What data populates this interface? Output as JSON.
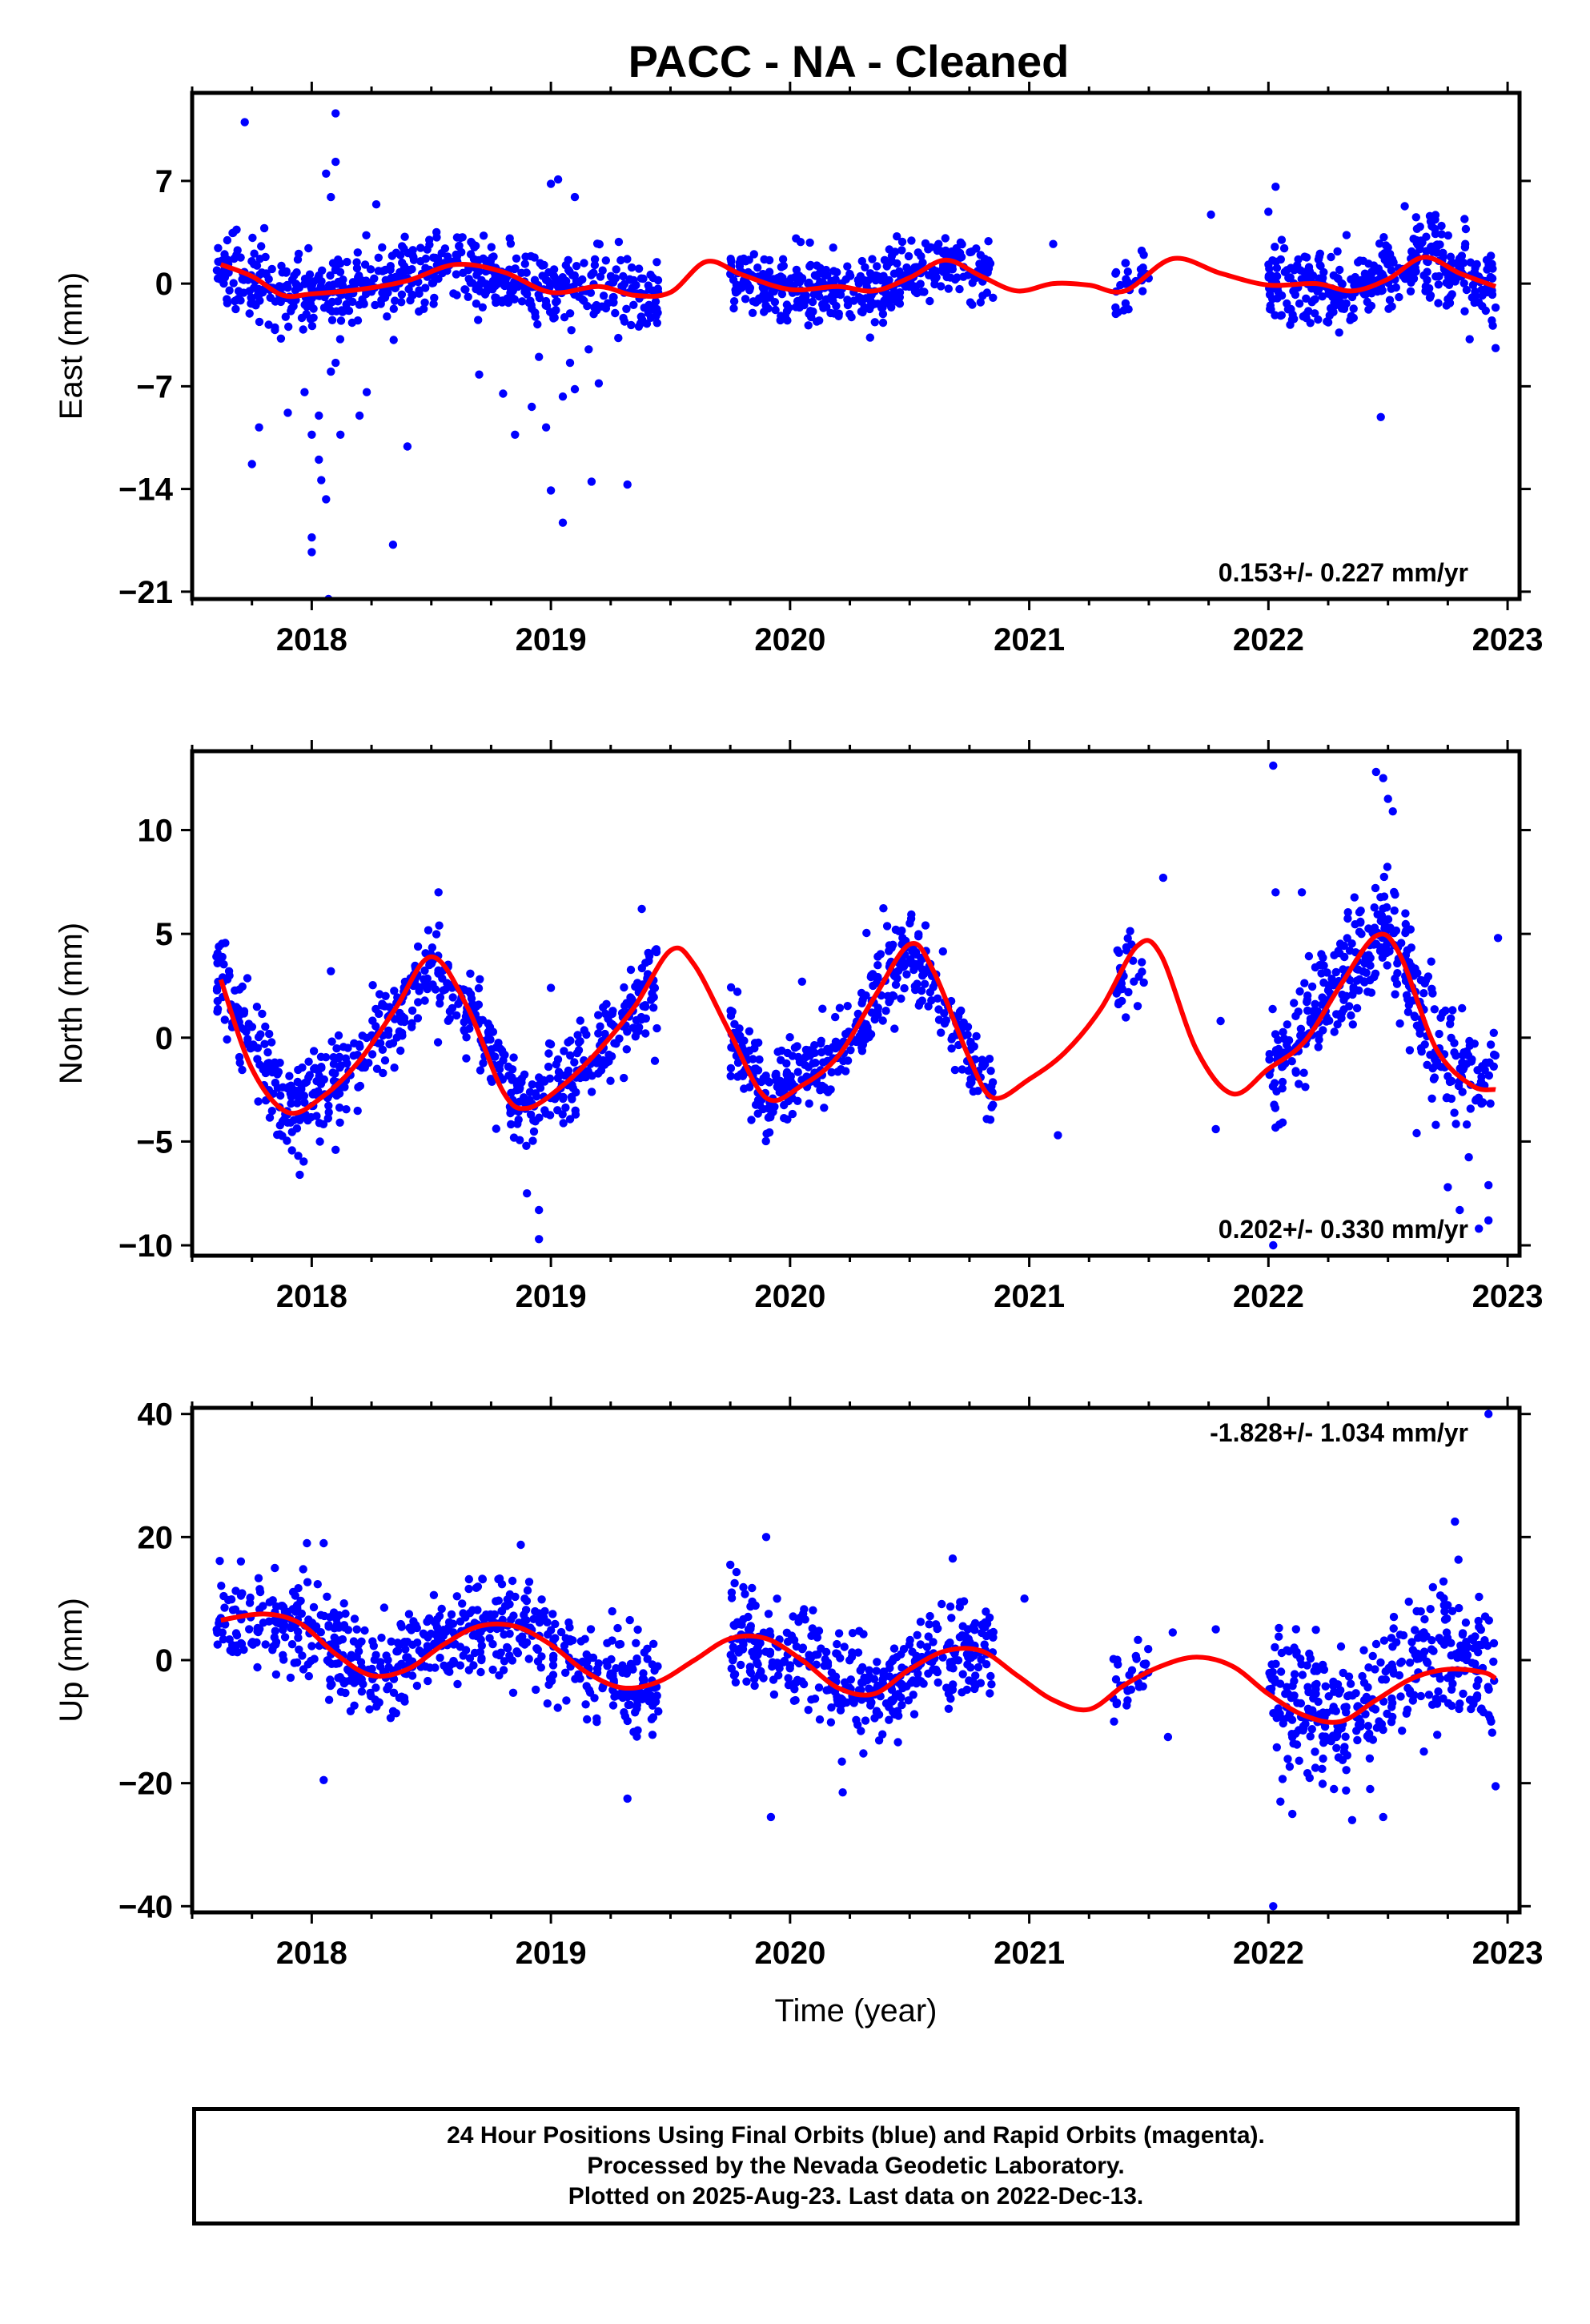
{
  "title": "PACC  - NA - Cleaned",
  "colors": {
    "final_orbits": "#0000ff",
    "fit": "#ff0000",
    "axes": "#000000"
  },
  "chart_data": [
    {
      "type": "scatter",
      "ylabel": "East (mm)",
      "xlabel": "",
      "xlim": [
        2017.5,
        2023.05
      ],
      "ylim": [
        -21.5,
        13.0
      ],
      "x_ticks": [
        2018,
        2019,
        2020,
        2021,
        2022,
        2023
      ],
      "y_ticks": [
        7,
        0,
        -7,
        -14,
        -21
      ],
      "rate_label": "0.153+/- 0.227 mm/yr",
      "rate_position": "bottom-right",
      "series": [
        {
          "kind": "fit",
          "color": "#ff0000",
          "x": [
            2017.62,
            2017.75,
            2017.88,
            2018.0,
            2018.2,
            2018.4,
            2018.6,
            2018.8,
            2019.0,
            2019.2,
            2019.35,
            2019.5,
            2019.65,
            2019.8,
            2020.0,
            2020.2,
            2020.35,
            2020.5,
            2020.65,
            2020.8,
            2020.95,
            2021.1,
            2021.25,
            2021.4,
            2021.6,
            2021.8,
            2022.0,
            2022.2,
            2022.35,
            2022.5,
            2022.65,
            2022.8,
            2022.95
          ],
          "y": [
            1.3,
            0.5,
            -0.8,
            -0.7,
            -0.4,
            0.2,
            1.3,
            0.8,
            -0.6,
            -0.2,
            -0.8,
            -0.6,
            1.5,
            0.6,
            -0.4,
            -0.2,
            -0.5,
            0.4,
            1.6,
            0.5,
            -0.5,
            0.0,
            -0.1,
            -0.5,
            1.7,
            0.7,
            -0.1,
            0.0,
            -0.5,
            0.3,
            1.8,
            0.7,
            -0.2
          ]
        }
      ],
      "scatter_segments": [
        {
          "start": 2017.6,
          "end": 2019.45,
          "center": [
            [
              2017.62,
              1.3
            ],
            [
              2017.88,
              -0.8
            ],
            [
              2018.2,
              -0.4
            ],
            [
              2018.6,
              1.3
            ],
            [
              2019.0,
              -0.6
            ],
            [
              2019.2,
              -0.2
            ],
            [
              2019.45,
              -0.8
            ]
          ],
          "spread": 1.2,
          "count": 620
        },
        {
          "start": 2019.75,
          "end": 2020.85,
          "center": [
            [
              2019.75,
              0.8
            ],
            [
              2020.0,
              -0.4
            ],
            [
              2020.35,
              -0.5
            ],
            [
              2020.65,
              1.6
            ],
            [
              2020.85,
              0.5
            ]
          ],
          "spread": 1.1,
          "count": 400
        },
        {
          "start": 2021.35,
          "end": 2021.5,
          "center": [
            [
              2021.35,
              -0.4
            ],
            [
              2021.5,
              0.6
            ]
          ],
          "spread": 1.0,
          "count": 30
        },
        {
          "start": 2022.0,
          "end": 2022.95,
          "center": [
            [
              2022.0,
              -0.1
            ],
            [
              2022.35,
              -0.5
            ],
            [
              2022.65,
              1.8
            ],
            [
              2022.95,
              -0.2
            ]
          ],
          "spread": 1.4,
          "count": 360
        }
      ],
      "outliers": [
        [
          2017.72,
          11.0
        ],
        [
          2018.1,
          11.6
        ],
        [
          2018.1,
          8.3
        ],
        [
          2018.06,
          7.5
        ],
        [
          2018.08,
          5.9
        ],
        [
          2018.27,
          5.4
        ],
        [
          2019.0,
          6.8
        ],
        [
          2019.03,
          7.1
        ],
        [
          2019.1,
          5.9
        ],
        [
          2017.78,
          -9.8
        ],
        [
          2017.75,
          -12.3
        ],
        [
          2017.9,
          -8.8
        ],
        [
          2017.97,
          -7.4
        ],
        [
          2018.0,
          -10.3
        ],
        [
          2018.0,
          -17.3
        ],
        [
          2018.0,
          -18.3
        ],
        [
          2018.03,
          -12.0
        ],
        [
          2018.04,
          -13.4
        ],
        [
          2018.06,
          -14.7
        ],
        [
          2018.03,
          -9.0
        ],
        [
          2018.08,
          -6.0
        ],
        [
          2018.1,
          -5.4
        ],
        [
          2018.12,
          -10.3
        ],
        [
          2018.07,
          -21.5
        ],
        [
          2018.2,
          -9.0
        ],
        [
          2018.23,
          -7.4
        ],
        [
          2018.34,
          -17.8
        ],
        [
          2018.4,
          -11.1
        ],
        [
          2018.7,
          -6.2
        ],
        [
          2018.8,
          -7.5
        ],
        [
          2018.85,
          -10.3
        ],
        [
          2018.92,
          -8.4
        ],
        [
          2018.98,
          -9.8
        ],
        [
          2018.95,
          -5.0
        ],
        [
          2019.0,
          -14.1
        ],
        [
          2019.05,
          -16.3
        ],
        [
          2019.05,
          -7.7
        ],
        [
          2019.1,
          -7.2
        ],
        [
          2019.17,
          -13.5
        ],
        [
          2019.2,
          -6.8
        ],
        [
          2019.32,
          -13.7
        ],
        [
          2019.08,
          -5.4
        ],
        [
          2022.47,
          -9.1
        ],
        [
          2022.82,
          4.4
        ],
        [
          2022.0,
          4.9
        ],
        [
          2022.03,
          6.6
        ],
        [
          2021.76,
          4.7
        ],
        [
          2021.1,
          2.7
        ],
        [
          2022.95,
          -4.4
        ]
      ]
    },
    {
      "type": "scatter",
      "ylabel": "North (mm)",
      "xlabel": "",
      "xlim": [
        2017.5,
        2023.05
      ],
      "ylim": [
        -10.5,
        13.8
      ],
      "x_ticks": [
        2018,
        2019,
        2020,
        2021,
        2022,
        2023
      ],
      "y_ticks": [
        10,
        5,
        0,
        -5,
        -10
      ],
      "rate_label": "0.202+/- 0.330 mm/yr",
      "rate_position": "bottom-right",
      "series": [
        {
          "kind": "fit",
          "color": "#ff0000",
          "x": [
            2017.62,
            2017.75,
            2017.9,
            2018.05,
            2018.2,
            2018.35,
            2018.5,
            2018.65,
            2018.8,
            2018.9,
            2019.05,
            2019.2,
            2019.35,
            2019.5,
            2019.6,
            2019.75,
            2019.9,
            2020.05,
            2020.2,
            2020.35,
            2020.5,
            2020.6,
            2020.75,
            2020.85,
            2021.0,
            2021.15,
            2021.3,
            2021.45,
            2021.55,
            2021.7,
            2021.85,
            2022.0,
            2022.15,
            2022.3,
            2022.45,
            2022.55,
            2022.7,
            2022.85,
            2022.95
          ],
          "y": [
            2.8,
            -1.5,
            -3.6,
            -2.8,
            -1.1,
            1.4,
            3.9,
            1.5,
            -2.6,
            -3.4,
            -2.3,
            -0.6,
            1.5,
            4.2,
            3.5,
            0.2,
            -2.9,
            -2.3,
            -0.9,
            1.9,
            4.5,
            3.2,
            -1.0,
            -2.9,
            -2.0,
            -0.7,
            1.4,
            4.4,
            4.0,
            -0.6,
            -2.7,
            -1.5,
            -0.2,
            2.5,
            4.9,
            4.0,
            -0.5,
            -2.3,
            -2.5
          ]
        }
      ],
      "scatter_segments": [
        {
          "start": 2017.6,
          "end": 2019.45,
          "center": [
            [
              2017.62,
              2.8
            ],
            [
              2017.9,
              -3.6
            ],
            [
              2018.2,
              -1.1
            ],
            [
              2018.5,
              3.9
            ],
            [
              2018.9,
              -3.4
            ],
            [
              2019.2,
              -0.6
            ],
            [
              2019.45,
              3.0
            ]
          ],
          "spread": 1.1,
          "count": 620
        },
        {
          "start": 2019.75,
          "end": 2020.85,
          "center": [
            [
              2019.75,
              0.2
            ],
            [
              2019.9,
              -2.9
            ],
            [
              2020.2,
              -0.9
            ],
            [
              2020.5,
              4.5
            ],
            [
              2020.75,
              -1.0
            ],
            [
              2020.85,
              -2.9
            ]
          ],
          "spread": 1.0,
          "count": 400
        },
        {
          "start": 2021.35,
          "end": 2021.5,
          "center": [
            [
              2021.35,
              2.5
            ],
            [
              2021.5,
              4.3
            ]
          ],
          "spread": 0.9,
          "count": 30
        },
        {
          "start": 2022.0,
          "end": 2022.95,
          "center": [
            [
              2022.0,
              -1.5
            ],
            [
              2022.3,
              2.5
            ],
            [
              2022.5,
              5.5
            ],
            [
              2022.7,
              -0.5
            ],
            [
              2022.95,
              -2.5
            ]
          ],
          "spread": 1.4,
          "count": 360
        }
      ],
      "outliers": [
        [
          2022.02,
          13.1
        ],
        [
          2022.45,
          12.8
        ],
        [
          2022.48,
          12.5
        ],
        [
          2022.5,
          11.5
        ],
        [
          2022.52,
          10.9
        ],
        [
          2022.03,
          7.0
        ],
        [
          2022.14,
          7.0
        ],
        [
          2021.56,
          7.7
        ],
        [
          2018.53,
          7.0
        ],
        [
          2019.38,
          6.2
        ],
        [
          2022.96,
          4.8
        ],
        [
          2018.95,
          -9.7
        ],
        [
          2018.9,
          -7.5
        ],
        [
          2018.95,
          -8.3
        ],
        [
          2017.95,
          -6.6
        ],
        [
          2018.1,
          -5.4
        ],
        [
          2022.62,
          -4.6
        ],
        [
          2022.7,
          -4.2
        ],
        [
          2022.75,
          -7.2
        ],
        [
          2022.8,
          -8.3
        ],
        [
          2022.88,
          -9.2
        ],
        [
          2022.92,
          -7.1
        ],
        [
          2022.92,
          -8.8
        ],
        [
          2022.02,
          -10.0
        ],
        [
          2021.12,
          -4.7
        ],
        [
          2021.78,
          -4.4
        ],
        [
          2021.8,
          0.8
        ],
        [
          2020.05,
          2.7
        ],
        [
          2018.08,
          3.2
        ],
        [
          2019.0,
          2.4
        ]
      ]
    },
    {
      "type": "scatter",
      "ylabel": "Up (mm)",
      "xlabel": "Time (year)",
      "xlim": [
        2017.5,
        2023.05
      ],
      "ylim": [
        -41.0,
        41.0
      ],
      "x_ticks": [
        2018,
        2019,
        2020,
        2021,
        2022,
        2023
      ],
      "y_ticks": [
        40,
        20,
        0,
        -20,
        -40
      ],
      "rate_label": "-1.828+/- 1.034 mm/yr",
      "rate_position": "top-right",
      "series": [
        {
          "kind": "fit",
          "color": "#ff0000",
          "x": [
            2017.62,
            2017.8,
            2017.95,
            2018.1,
            2018.25,
            2018.4,
            2018.55,
            2018.7,
            2018.85,
            2019.0,
            2019.15,
            2019.3,
            2019.45,
            2019.6,
            2019.75,
            2019.9,
            2020.05,
            2020.2,
            2020.35,
            2020.5,
            2020.65,
            2020.8,
            2020.95,
            2021.1,
            2021.25,
            2021.4,
            2021.55,
            2021.7,
            2021.85,
            2022.0,
            2022.15,
            2022.3,
            2022.45,
            2022.6,
            2022.75,
            2022.9,
            2022.95
          ],
          "y": [
            6.5,
            7.5,
            6.0,
            1.0,
            -2.5,
            -1.5,
            2.5,
            5.5,
            5.5,
            2.5,
            -2.0,
            -4.5,
            -3.5,
            0.0,
            3.5,
            3.5,
            0.0,
            -4.5,
            -5.5,
            -1.5,
            1.5,
            1.5,
            -2.5,
            -6.5,
            -8.0,
            -4.0,
            -1.0,
            0.5,
            -1.0,
            -5.5,
            -9.0,
            -10.0,
            -6.5,
            -3.0,
            -1.5,
            -2.0,
            -3.0
          ]
        }
      ],
      "scatter_segments": [
        {
          "start": 2017.6,
          "end": 2019.45,
          "center": [
            [
              2017.62,
              6.5
            ],
            [
              2017.95,
              6.0
            ],
            [
              2018.25,
              -2.5
            ],
            [
              2018.7,
              5.5
            ],
            [
              2018.85,
              5.5
            ],
            [
              2019.15,
              -2.0
            ],
            [
              2019.45,
              -3.5
            ]
          ],
          "spread": 4.0,
          "count": 620
        },
        {
          "start": 2019.75,
          "end": 2020.85,
          "center": [
            [
              2019.75,
              3.5
            ],
            [
              2020.05,
              0.0
            ],
            [
              2020.35,
              -5.5
            ],
            [
              2020.65,
              1.5
            ],
            [
              2020.85,
              1.5
            ]
          ],
          "spread": 4.0,
          "count": 400
        },
        {
          "start": 2021.35,
          "end": 2021.5,
          "center": [
            [
              2021.35,
              -4.0
            ],
            [
              2021.5,
              -2.0
            ]
          ],
          "spread": 3.5,
          "count": 30
        },
        {
          "start": 2022.0,
          "end": 2022.95,
          "center": [
            [
              2022.0,
              -5.5
            ],
            [
              2022.3,
              -10.0
            ],
            [
              2022.6,
              -3.0
            ],
            [
              2022.75,
              2.0
            ],
            [
              2022.95,
              -3.0
            ]
          ],
          "spread": 5.5,
          "count": 360
        }
      ],
      "outliers": [
        [
          2022.92,
          40.0
        ],
        [
          2022.02,
          -40.0
        ],
        [
          2017.98,
          19.0
        ],
        [
          2018.05,
          19.0
        ],
        [
          2019.9,
          20.0
        ],
        [
          2022.78,
          22.5
        ],
        [
          2018.05,
          -19.5
        ],
        [
          2019.32,
          -22.5
        ],
        [
          2019.92,
          -25.5
        ],
        [
          2020.22,
          -21.5
        ],
        [
          2022.05,
          -23.0
        ],
        [
          2022.1,
          -25.0
        ],
        [
          2022.35,
          -26.0
        ],
        [
          2022.48,
          -25.5
        ],
        [
          2022.95,
          -20.5
        ],
        [
          2020.68,
          16.5
        ],
        [
          2019.75,
          15.5
        ],
        [
          2021.6,
          4.5
        ],
        [
          2021.78,
          5.0
        ],
        [
          2021.58,
          -12.5
        ],
        [
          2020.98,
          10.0
        ]
      ]
    }
  ],
  "caption": {
    "line1": "24 Hour Positions Using Final Orbits (blue) and Rapid Orbits (magenta).",
    "line2": "Processed by the Nevada Geodetic Laboratory.",
    "line3": "Plotted on 2025-Aug-23. Last data on 2022-Dec-13."
  }
}
